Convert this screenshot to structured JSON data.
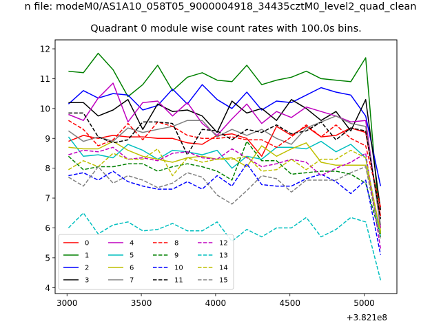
{
  "supertitle": "n file: modeM0/AS1A10_058T05_9000004918_34435cztM0_level2_quad_clean",
  "chart_data": {
    "type": "line",
    "title": "Quadrant 0 module wise count rates with 100.0s bins.",
    "xlabel": "",
    "ylabel": "",
    "x_offset_label": "+3.821e8",
    "xlim": [
      2920,
      5220
    ],
    "ylim": [
      3.8,
      12.3
    ],
    "xticks": [
      3000,
      3500,
      4000,
      4500,
      5000
    ],
    "xtick_labels": [
      "3000",
      "3500",
      "4000",
      "4500",
      "5000"
    ],
    "yticks": [
      4,
      5,
      6,
      7,
      8,
      9,
      10,
      11,
      12
    ],
    "ytick_labels": [
      "4",
      "5",
      "6",
      "7",
      "8",
      "9",
      "10",
      "11",
      "12"
    ],
    "grid": false,
    "legend_position": "lower-left",
    "legend_columns": 4,
    "x": [
      3010,
      3110,
      3210,
      3310,
      3410,
      3510,
      3610,
      3710,
      3810,
      3910,
      4010,
      4110,
      4210,
      4310,
      4410,
      4510,
      4610,
      4710,
      4810,
      4910,
      5010,
      5110
    ],
    "series": [
      {
        "name": "0",
        "color": "#ff0000",
        "dash": "solid",
        "values": [
          8.9,
          9.1,
          9.0,
          9.1,
          9.05,
          9.05,
          9.0,
          9.0,
          8.85,
          8.8,
          9.1,
          9.15,
          9.0,
          8.4,
          9.4,
          9.1,
          9.4,
          9.05,
          9.1,
          9.35,
          9.2,
          6.4
        ]
      },
      {
        "name": "1",
        "color": "#008000",
        "dash": "solid",
        "values": [
          11.25,
          11.2,
          11.85,
          11.3,
          10.4,
          10.8,
          11.45,
          10.6,
          11.05,
          11.2,
          10.95,
          10.9,
          11.45,
          10.8,
          10.95,
          11.05,
          11.25,
          11.0,
          10.95,
          10.9,
          11.7,
          5.8
        ]
      },
      {
        "name": "2",
        "color": "#0000ff",
        "dash": "solid",
        "values": [
          10.15,
          10.6,
          10.35,
          10.5,
          10.45,
          9.95,
          10.1,
          10.65,
          10.15,
          10.8,
          10.3,
          10.0,
          10.55,
          9.95,
          10.25,
          10.2,
          10.45,
          10.7,
          10.55,
          10.45,
          9.75,
          7.4
        ]
      },
      {
        "name": "3",
        "color": "#000000",
        "dash": "solid",
        "values": [
          10.2,
          10.2,
          9.75,
          9.95,
          10.3,
          9.3,
          10.15,
          9.9,
          9.95,
          9.75,
          9.2,
          10.25,
          9.85,
          10.0,
          9.6,
          10.3,
          10.0,
          9.6,
          9.9,
          9.25,
          10.3,
          6.6
        ]
      },
      {
        "name": "4",
        "color": "#bf00bf",
        "dash": "solid",
        "values": [
          9.8,
          9.6,
          10.35,
          10.85,
          9.55,
          10.2,
          10.25,
          9.75,
          10.2,
          9.5,
          9.1,
          9.65,
          10.15,
          9.5,
          9.9,
          9.7,
          10.05,
          9.9,
          9.75,
          9.55,
          9.6,
          6.0
        ]
      },
      {
        "name": "5",
        "color": "#00bfbf",
        "dash": "solid",
        "values": [
          9.05,
          8.4,
          8.45,
          8.35,
          8.8,
          8.6,
          8.3,
          8.6,
          8.55,
          8.45,
          8.6,
          8.0,
          8.4,
          8.3,
          8.7,
          8.7,
          8.65,
          8.9,
          8.55,
          8.8,
          8.35,
          5.7
        ]
      },
      {
        "name": "6",
        "color": "#bfbf00",
        "dash": "solid",
        "values": [
          8.7,
          8.65,
          8.65,
          8.9,
          8.6,
          8.4,
          8.3,
          8.2,
          8.35,
          8.4,
          8.3,
          8.35,
          8.05,
          8.75,
          8.4,
          8.65,
          8.85,
          8.2,
          8.1,
          8.1,
          8.1,
          5.9
        ]
      },
      {
        "name": "7",
        "color": "#808080",
        "dash": "solid",
        "values": [
          9.25,
          8.9,
          9.05,
          8.9,
          9.35,
          9.2,
          9.3,
          9.4,
          9.6,
          9.6,
          9.05,
          9.3,
          9.1,
          9.3,
          9.0,
          8.8,
          9.35,
          9.55,
          9.75,
          9.5,
          9.4,
          6.1
        ]
      },
      {
        "name": "8",
        "color": "#ff0000",
        "dash": "dash",
        "values": [
          9.6,
          9.3,
          8.75,
          8.95,
          9.5,
          8.95,
          9.55,
          9.4,
          9.1,
          9.0,
          9.0,
          9.05,
          8.95,
          8.95,
          8.7,
          9.05,
          9.45,
          9.05,
          9.45,
          9.0,
          8.75,
          6.7
        ]
      },
      {
        "name": "9",
        "color": "#008000",
        "dash": "dash",
        "values": [
          8.4,
          7.95,
          8.05,
          8.05,
          8.15,
          8.15,
          7.9,
          8.05,
          8.15,
          8.05,
          7.9,
          7.6,
          8.9,
          8.25,
          8.25,
          7.8,
          7.85,
          7.9,
          7.9,
          7.8,
          7.5,
          5.7
        ]
      },
      {
        "name": "10",
        "color": "#0000ff",
        "dash": "dash",
        "values": [
          7.75,
          7.85,
          7.6,
          7.9,
          7.55,
          7.4,
          7.3,
          7.3,
          7.55,
          7.3,
          7.75,
          7.4,
          8.15,
          7.45,
          7.4,
          7.4,
          7.65,
          7.8,
          7.55,
          7.15,
          7.6,
          5.1
        ]
      },
      {
        "name": "11",
        "color": "#000000",
        "dash": "dash",
        "values": [
          9.85,
          9.85,
          9.05,
          8.85,
          8.95,
          9.55,
          9.55,
          9.5,
          8.45,
          9.3,
          9.25,
          8.95,
          9.3,
          9.2,
          9.45,
          9.15,
          9.25,
          9.55,
          8.95,
          9.35,
          9.25,
          6.3
        ]
      },
      {
        "name": "12",
        "color": "#bf00bf",
        "dash": "dash",
        "values": [
          8.45,
          8.6,
          8.55,
          8.7,
          8.3,
          8.35,
          8.25,
          8.5,
          8.55,
          8.35,
          8.3,
          8.65,
          8.35,
          8.05,
          8.15,
          8.3,
          8.2,
          7.75,
          8.0,
          8.2,
          8.5,
          5.3
        ]
      },
      {
        "name": "13",
        "color": "#00bfbf",
        "dash": "dash",
        "values": [
          6.0,
          6.5,
          5.8,
          6.1,
          6.2,
          5.9,
          5.95,
          6.15,
          5.9,
          5.9,
          6.2,
          5.55,
          5.95,
          5.7,
          6.0,
          6.0,
          6.35,
          5.7,
          5.95,
          6.35,
          6.2,
          4.25
        ]
      },
      {
        "name": "14",
        "color": "#bfbf00",
        "dash": "dash",
        "values": [
          7.95,
          8.25,
          8.05,
          8.5,
          8.3,
          8.3,
          8.65,
          7.75,
          8.35,
          8.2,
          8.3,
          8.3,
          8.4,
          7.9,
          7.95,
          8.3,
          7.95,
          8.3,
          8.3,
          8.6,
          8.35,
          5.8
        ]
      },
      {
        "name": "15",
        "color": "#808080",
        "dash": "dash",
        "values": [
          7.7,
          7.4,
          8.05,
          7.5,
          7.75,
          7.6,
          7.35,
          7.5,
          7.85,
          7.7,
          7.1,
          6.8,
          7.25,
          7.75,
          7.65,
          7.2,
          7.6,
          7.6,
          7.6,
          7.85,
          8.05,
          5.6
        ]
      }
    ]
  }
}
